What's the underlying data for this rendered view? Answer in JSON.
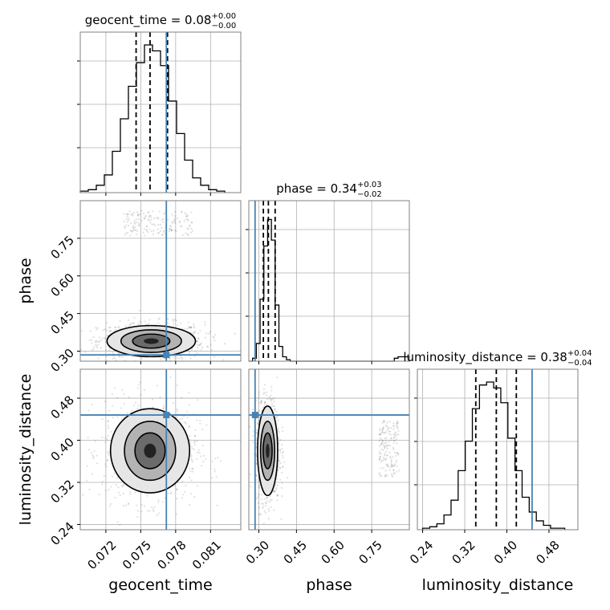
{
  "chart_data": {
    "type": "corner",
    "parameters": [
      "geocent_time",
      "phase",
      "luminosity_distance"
    ],
    "truths": {
      "geocent_time": 0.0772,
      "phase": 0.285,
      "luminosity_distance": 0.448
    },
    "titles": [
      {
        "param": "geocent_time",
        "text": "geocent_time = 0.08",
        "sup": "+0.00",
        "sub": "−0.00",
        "median": 0.0758,
        "q16": 0.0746,
        "q84": 0.0773
      },
      {
        "param": "phase",
        "text": "phase = 0.34",
        "sup": "+0.03",
        "sub": "−0.02",
        "median": 0.338,
        "q16": 0.318,
        "q84": 0.365
      },
      {
        "param": "luminosity_distance",
        "text": "luminosity_distance = 0.38",
        "sup": "+0.04",
        "sub": "−0.04",
        "median": 0.38,
        "q16": 0.341,
        "q84": 0.418
      }
    ],
    "axes": {
      "geocent_time": {
        "range": [
          0.0698,
          0.0836
        ],
        "ticks": [
          0.072,
          0.075,
          0.078,
          0.081
        ],
        "tick_labels": [
          "0.072",
          "0.075",
          "0.078",
          "0.081"
        ],
        "label": "geocent_time"
      },
      "phase": {
        "range": [
          0.26,
          0.9
        ],
        "ticks": [
          0.3,
          0.45,
          0.6,
          0.75
        ],
        "tick_labels": [
          "0.30",
          "0.45",
          "0.60",
          "0.75"
        ],
        "label": "phase"
      },
      "luminosity_distance": {
        "range": [
          0.23,
          0.535
        ],
        "ticks": [
          0.24,
          0.32,
          0.4,
          0.48
        ],
        "tick_labels": [
          "0.24",
          "0.32",
          "0.40",
          "0.48"
        ],
        "label": "luminosity_distance"
      }
    },
    "histograms": {
      "geocent_time": {
        "bin_edges": [
          0.0698,
          0.07049,
          0.07118,
          0.07187,
          0.07256,
          0.07325,
          0.07394,
          0.07463,
          0.07532,
          0.07601,
          0.0767,
          0.07739,
          0.07808,
          0.07877,
          0.07946,
          0.08015,
          0.08084,
          0.08153,
          0.08222
        ],
        "counts": [
          0.01,
          0.02,
          0.05,
          0.12,
          0.28,
          0.5,
          0.72,
          0.88,
          1.0,
          0.96,
          0.86,
          0.62,
          0.4,
          0.22,
          0.1,
          0.05,
          0.02,
          0.01
        ]
      },
      "phase": {
        "bin_edges": [
          0.26,
          0.275,
          0.29,
          0.305,
          0.32,
          0.335,
          0.35,
          0.365,
          0.38,
          0.395,
          0.41,
          0.425,
          0.44,
          0.84,
          0.855,
          0.87,
          0.885,
          0.9
        ],
        "counts": [
          0.0,
          0.02,
          0.12,
          0.42,
          0.78,
          0.96,
          0.82,
          0.38,
          0.1,
          0.03,
          0.01,
          0.0,
          0.0,
          0.02,
          0.03,
          0.03,
          0.03
        ]
      },
      "luminosity_distance": {
        "bin_edges": [
          0.24,
          0.2535,
          0.267,
          0.2805,
          0.294,
          0.3075,
          0.321,
          0.3345,
          0.348,
          0.3615,
          0.375,
          0.3885,
          0.402,
          0.4155,
          0.429,
          0.4425,
          0.456,
          0.4695,
          0.483,
          0.4965,
          0.51
        ],
        "counts": [
          0.01,
          0.02,
          0.04,
          0.1,
          0.2,
          0.4,
          0.6,
          0.82,
          0.98,
          1.0,
          0.96,
          0.86,
          0.62,
          0.4,
          0.22,
          0.12,
          0.06,
          0.03,
          0.01,
          0.01
        ]
      }
    },
    "posterior_2d": [
      {
        "x": "geocent_time",
        "y": "phase",
        "center": [
          0.0759,
          0.34
        ],
        "contour_half_widths": [
          [
            0.0016,
            0.028
          ],
          [
            0.0026,
            0.045
          ],
          [
            0.0038,
            0.062
          ]
        ],
        "secondary_mode": {
          "x": [
            0.0735,
            0.0795
          ],
          "y": [
            0.76,
            0.86
          ]
        }
      },
      {
        "x": "geocent_time",
        "y": "luminosity_distance",
        "center": [
          0.0758,
          0.38
        ],
        "contour_half_widths": [
          [
            0.0013,
            0.034
          ],
          [
            0.0022,
            0.056
          ],
          [
            0.0034,
            0.08
          ]
        ]
      },
      {
        "x": "phase",
        "y": "luminosity_distance",
        "center": [
          0.335,
          0.38
        ],
        "contour_half_widths": [
          [
            0.018,
            0.034
          ],
          [
            0.028,
            0.056
          ],
          [
            0.04,
            0.085
          ]
        ],
        "secondary_mode": {
          "x": [
            0.78,
            0.86
          ],
          "y": [
            0.33,
            0.44
          ]
        }
      }
    ],
    "grid": true,
    "legend": "none"
  }
}
